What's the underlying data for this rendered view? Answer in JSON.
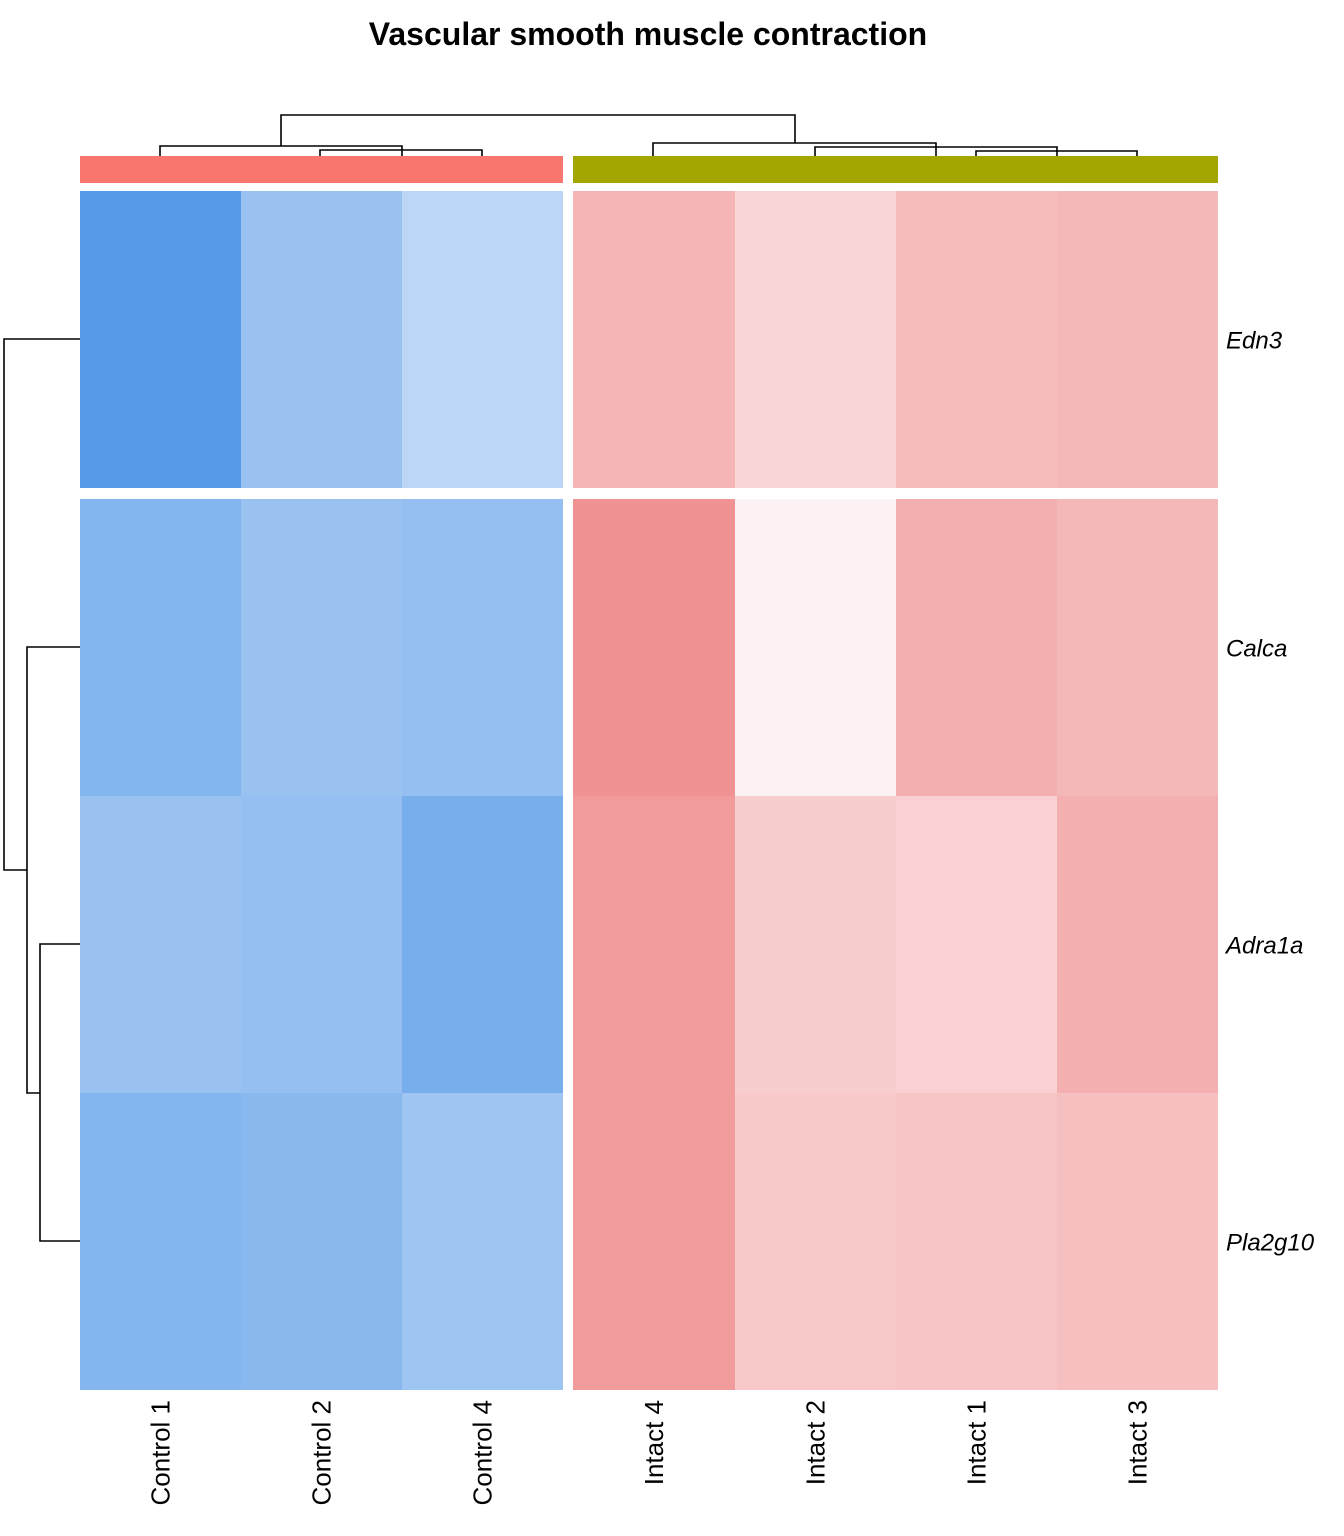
{
  "chart_data": {
    "type": "heatmap",
    "title": "Vascular smooth muscle contraction",
    "columns": [
      "Control 1",
      "Control 2",
      "Control 4",
      "Intact 4",
      "Intact 2",
      "Intact 1",
      "Intact 3"
    ],
    "rows": [
      "Edn3",
      "Calca",
      "Adra1a",
      "Pla2g10"
    ],
    "column_groups": [
      {
        "columns": [
          "Control 1",
          "Control 2",
          "Control 4"
        ],
        "color": "#F8766D"
      },
      {
        "columns": [
          "Intact 4",
          "Intact 2",
          "Intact 1",
          "Intact 3"
        ],
        "color": "#A3A500"
      }
    ],
    "row_splits": [
      [
        "Edn3"
      ],
      [
        "Calca",
        "Adra1a",
        "Pla2g10"
      ]
    ],
    "values": [
      [
        -1.5,
        -0.9,
        -0.6,
        0.9,
        0.5,
        0.8,
        0.85
      ],
      [
        -1.1,
        -0.9,
        -0.95,
        1.3,
        0.15,
        0.95,
        0.85
      ],
      [
        -0.9,
        -0.95,
        -1.2,
        1.2,
        0.6,
        0.55,
        0.95
      ],
      [
        -1.1,
        -1.05,
        -0.85,
        1.2,
        0.65,
        0.7,
        0.75
      ]
    ],
    "color_scale": {
      "low": "#1E78E0",
      "mid": "#FFFFFF",
      "high": "#E8585A",
      "range": [
        -2,
        2
      ]
    },
    "legend": false
  },
  "colors": {
    "background": "#FFFFFF",
    "text": "#000000",
    "dendrogram": "#000000"
  }
}
